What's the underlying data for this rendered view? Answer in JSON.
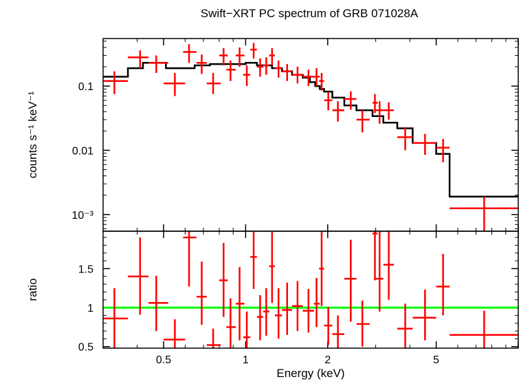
{
  "title": "Swift−XRT PC spectrum of GRB 071028A",
  "colors": {
    "data": "#ff0000",
    "model": "#000000",
    "unity": "#00ff00",
    "axes": "#000000"
  },
  "chart_data": [
    {
      "type": "scatter",
      "panel": "spectrum",
      "xscale": "log",
      "yscale": "log",
      "xlim": [
        0.3,
        10
      ],
      "ylim": [
        0.00055,
        0.55
      ],
      "xlabel": "Energy (keV)",
      "ylabel": "counts s⁻¹ keV⁻¹",
      "ytick_labels": [
        {
          "value": 0.1,
          "label": "0.1"
        },
        {
          "value": 0.01,
          "label": "0.01"
        },
        {
          "value": 0.001,
          "label": "10⁻³"
        }
      ],
      "series": [
        {
          "kind": "data",
          "points": [
            {
              "x": 0.33,
              "xlo": 0.3,
              "xhi": 0.37,
              "y": 0.12,
              "ylo": 0.075,
              "yhi": 0.17
            },
            {
              "x": 0.41,
              "xlo": 0.37,
              "xhi": 0.44,
              "y": 0.28,
              "ylo": 0.19,
              "yhi": 0.36
            },
            {
              "x": 0.47,
              "xlo": 0.44,
              "xhi": 0.52,
              "y": 0.23,
              "ylo": 0.16,
              "yhi": 0.3
            },
            {
              "x": 0.55,
              "xlo": 0.5,
              "xhi": 0.6,
              "y": 0.11,
              "ylo": 0.07,
              "yhi": 0.16
            },
            {
              "x": 0.62,
              "xlo": 0.59,
              "xhi": 0.66,
              "y": 0.34,
              "ylo": 0.23,
              "yhi": 0.45
            },
            {
              "x": 0.69,
              "xlo": 0.66,
              "xhi": 0.72,
              "y": 0.23,
              "ylo": 0.155,
              "yhi": 0.31
            },
            {
              "x": 0.76,
              "xlo": 0.72,
              "xhi": 0.81,
              "y": 0.11,
              "ylo": 0.075,
              "yhi": 0.16
            },
            {
              "x": 0.83,
              "xlo": 0.8,
              "xhi": 0.86,
              "y": 0.3,
              "ylo": 0.21,
              "yhi": 0.39
            },
            {
              "x": 0.88,
              "xlo": 0.85,
              "xhi": 0.92,
              "y": 0.18,
              "ylo": 0.12,
              "yhi": 0.25
            },
            {
              "x": 0.95,
              "xlo": 0.92,
              "xhi": 0.99,
              "y": 0.3,
              "ylo": 0.2,
              "yhi": 0.4
            },
            {
              "x": 1.01,
              "xlo": 0.98,
              "xhi": 1.04,
              "y": 0.15,
              "ylo": 0.1,
              "yhi": 0.21
            },
            {
              "x": 1.07,
              "xlo": 1.04,
              "xhi": 1.1,
              "y": 0.37,
              "ylo": 0.27,
              "yhi": 0.47
            },
            {
              "x": 1.13,
              "xlo": 1.1,
              "xhi": 1.16,
              "y": 0.2,
              "ylo": 0.14,
              "yhi": 0.27
            },
            {
              "x": 1.19,
              "xlo": 1.16,
              "xhi": 1.22,
              "y": 0.21,
              "ylo": 0.15,
              "yhi": 0.28
            },
            {
              "x": 1.25,
              "xlo": 1.22,
              "xhi": 1.28,
              "y": 0.3,
              "ylo": 0.21,
              "yhi": 0.39
            },
            {
              "x": 1.32,
              "xlo": 1.28,
              "xhi": 1.36,
              "y": 0.19,
              "ylo": 0.135,
              "yhi": 0.25
            },
            {
              "x": 1.42,
              "xlo": 1.36,
              "xhi": 1.48,
              "y": 0.17,
              "ylo": 0.12,
              "yhi": 0.22
            },
            {
              "x": 1.55,
              "xlo": 1.48,
              "xhi": 1.62,
              "y": 0.15,
              "ylo": 0.11,
              "yhi": 0.2
            },
            {
              "x": 1.7,
              "xlo": 1.62,
              "xhi": 1.78,
              "y": 0.14,
              "ylo": 0.1,
              "yhi": 0.18
            },
            {
              "x": 1.82,
              "xlo": 1.78,
              "xhi": 1.87,
              "y": 0.14,
              "ylo": 0.1,
              "yhi": 0.19
            },
            {
              "x": 1.9,
              "xlo": 1.86,
              "xhi": 1.94,
              "y": 0.12,
              "ylo": 0.085,
              "yhi": 0.16
            },
            {
              "x": 2.01,
              "xlo": 1.94,
              "xhi": 2.08,
              "y": 0.06,
              "ylo": 0.042,
              "yhi": 0.081
            },
            {
              "x": 2.18,
              "xlo": 2.08,
              "xhi": 2.3,
              "y": 0.042,
              "ylo": 0.028,
              "yhi": 0.058
            },
            {
              "x": 2.43,
              "xlo": 2.3,
              "xhi": 2.55,
              "y": 0.063,
              "ylo": 0.043,
              "yhi": 0.083
            },
            {
              "x": 2.68,
              "xlo": 2.55,
              "xhi": 2.85,
              "y": 0.03,
              "ylo": 0.019,
              "yhi": 0.042
            },
            {
              "x": 2.98,
              "xlo": 2.92,
              "xhi": 3.05,
              "y": 0.055,
              "ylo": 0.038,
              "yhi": 0.075
            },
            {
              "x": 3.1,
              "xlo": 3.0,
              "xhi": 3.2,
              "y": 0.042,
              "ylo": 0.026,
              "yhi": 0.058
            },
            {
              "x": 3.35,
              "xlo": 3.2,
              "xhi": 3.5,
              "y": 0.042,
              "ylo": 0.03,
              "yhi": 0.056
            },
            {
              "x": 3.85,
              "xlo": 3.6,
              "xhi": 4.1,
              "y": 0.016,
              "ylo": 0.01,
              "yhi": 0.023
            },
            {
              "x": 4.55,
              "xlo": 4.1,
              "xhi": 5.0,
              "y": 0.013,
              "ylo": 0.0085,
              "yhi": 0.018
            },
            {
              "x": 5.3,
              "xlo": 5.0,
              "xhi": 5.6,
              "y": 0.011,
              "ylo": 0.0065,
              "yhi": 0.015
            },
            {
              "x": 7.5,
              "xlo": 5.6,
              "xhi": 10.0,
              "y": 0.00125,
              "ylo": 0.00055,
              "yhi": 0.0019
            }
          ]
        },
        {
          "kind": "model-step",
          "steps": [
            {
              "x0": 0.3,
              "x1": 0.37,
              "y": 0.14
            },
            {
              "x0": 0.37,
              "x1": 0.42,
              "y": 0.19
            },
            {
              "x0": 0.42,
              "x1": 0.51,
              "y": 0.23
            },
            {
              "x0": 0.51,
              "x1": 0.65,
              "y": 0.19
            },
            {
              "x0": 0.65,
              "x1": 0.74,
              "y": 0.21
            },
            {
              "x0": 0.74,
              "x1": 1.0,
              "y": 0.22
            },
            {
              "x0": 1.0,
              "x1": 1.1,
              "y": 0.23
            },
            {
              "x0": 1.1,
              "x1": 1.25,
              "y": 0.21
            },
            {
              "x0": 1.25,
              "x1": 1.36,
              "y": 0.19
            },
            {
              "x0": 1.36,
              "x1": 1.48,
              "y": 0.17
            },
            {
              "x0": 1.48,
              "x1": 1.62,
              "y": 0.15
            },
            {
              "x0": 1.62,
              "x1": 1.72,
              "y": 0.135
            },
            {
              "x0": 1.72,
              "x1": 1.8,
              "y": 0.115
            },
            {
              "x0": 1.8,
              "x1": 1.87,
              "y": 0.1
            },
            {
              "x0": 1.87,
              "x1": 1.94,
              "y": 0.09
            },
            {
              "x0": 1.94,
              "x1": 2.08,
              "y": 0.082
            },
            {
              "x0": 2.08,
              "x1": 2.3,
              "y": 0.066
            },
            {
              "x0": 2.3,
              "x1": 2.55,
              "y": 0.05
            },
            {
              "x0": 2.55,
              "x1": 2.92,
              "y": 0.042
            },
            {
              "x0": 2.92,
              "x1": 3.2,
              "y": 0.034
            },
            {
              "x0": 3.2,
              "x1": 3.6,
              "y": 0.027
            },
            {
              "x0": 3.6,
              "x1": 4.1,
              "y": 0.022
            },
            {
              "x0": 4.1,
              "x1": 5.0,
              "y": 0.013
            },
            {
              "x0": 5.0,
              "x1": 5.6,
              "y": 0.0088
            },
            {
              "x0": 5.6,
              "x1": 10.0,
              "y": 0.0019
            }
          ]
        }
      ]
    },
    {
      "type": "scatter",
      "panel": "ratio",
      "xscale": "log",
      "yscale": "linear",
      "xlim": [
        0.3,
        10
      ],
      "ylim": [
        0.48,
        1.98
      ],
      "xlabel": "Energy (keV)",
      "ylabel": "ratio",
      "xtick_labels": [
        {
          "value": 0.5,
          "label": "0.5"
        },
        {
          "value": 1,
          "label": "1"
        },
        {
          "value": 2,
          "label": "2"
        },
        {
          "value": 5,
          "label": "5"
        }
      ],
      "ytick_labels": [
        {
          "value": 0.5,
          "label": "0.5"
        },
        {
          "value": 1,
          "label": "1"
        },
        {
          "value": 1.5,
          "label": "1.5"
        }
      ],
      "reference_line": 1,
      "series": [
        {
          "kind": "data",
          "points": [
            {
              "x": 0.33,
              "xlo": 0.3,
              "xhi": 0.37,
              "y": 0.86,
              "ylo": 0.48,
              "yhi": 1.25
            },
            {
              "x": 0.41,
              "xlo": 0.37,
              "xhi": 0.44,
              "y": 1.4,
              "ylo": 0.91,
              "yhi": 1.9
            },
            {
              "x": 0.47,
              "xlo": 0.44,
              "xhi": 0.52,
              "y": 1.06,
              "ylo": 0.7,
              "yhi": 1.41
            },
            {
              "x": 0.55,
              "xlo": 0.5,
              "xhi": 0.6,
              "y": 0.59,
              "ylo": 0.48,
              "yhi": 0.85
            },
            {
              "x": 0.62,
              "xlo": 0.59,
              "xhi": 0.66,
              "y": 1.9,
              "ylo": 1.27,
              "yhi": 1.98
            },
            {
              "x": 0.69,
              "xlo": 0.66,
              "xhi": 0.72,
              "y": 1.14,
              "ylo": 0.78,
              "yhi": 1.59
            },
            {
              "x": 0.76,
              "xlo": 0.72,
              "xhi": 0.81,
              "y": 0.52,
              "ylo": 0.48,
              "yhi": 0.73
            },
            {
              "x": 0.83,
              "xlo": 0.8,
              "xhi": 0.86,
              "y": 1.35,
              "ylo": 0.88,
              "yhi": 1.83
            },
            {
              "x": 0.88,
              "xlo": 0.85,
              "xhi": 0.92,
              "y": 0.75,
              "ylo": 0.48,
              "yhi": 1.12
            },
            {
              "x": 0.95,
              "xlo": 0.92,
              "xhi": 0.99,
              "y": 1.05,
              "ylo": 0.58,
              "yhi": 1.52
            },
            {
              "x": 1.01,
              "xlo": 0.98,
              "xhi": 1.04,
              "y": 0.62,
              "ylo": 0.48,
              "yhi": 0.95
            },
            {
              "x": 1.07,
              "xlo": 1.04,
              "xhi": 1.1,
              "y": 1.65,
              "ylo": 1.24,
              "yhi": 1.98
            },
            {
              "x": 1.13,
              "xlo": 1.1,
              "xhi": 1.16,
              "y": 0.88,
              "ylo": 0.58,
              "yhi": 1.16
            },
            {
              "x": 1.19,
              "xlo": 1.16,
              "xhi": 1.22,
              "y": 0.95,
              "ylo": 0.64,
              "yhi": 1.25
            },
            {
              "x": 1.25,
              "xlo": 1.22,
              "xhi": 1.28,
              "y": 1.53,
              "ylo": 1.06,
              "yhi": 1.98
            },
            {
              "x": 1.32,
              "xlo": 1.28,
              "xhi": 1.36,
              "y": 0.9,
              "ylo": 0.6,
              "yhi": 1.25
            },
            {
              "x": 1.42,
              "xlo": 1.36,
              "xhi": 1.48,
              "y": 0.97,
              "ylo": 0.65,
              "yhi": 1.32
            },
            {
              "x": 1.55,
              "xlo": 1.48,
              "xhi": 1.62,
              "y": 1.02,
              "ylo": 0.7,
              "yhi": 1.34
            },
            {
              "x": 1.7,
              "xlo": 1.62,
              "xhi": 1.78,
              "y": 0.96,
              "ylo": 0.68,
              "yhi": 1.24
            },
            {
              "x": 1.82,
              "xlo": 1.78,
              "xhi": 1.87,
              "y": 1.05,
              "ylo": 0.75,
              "yhi": 1.38
            },
            {
              "x": 1.9,
              "xlo": 1.86,
              "xhi": 1.94,
              "y": 1.5,
              "ylo": 1.02,
              "yhi": 1.98
            },
            {
              "x": 2.01,
              "xlo": 1.94,
              "xhi": 2.08,
              "y": 0.77,
              "ylo": 0.52,
              "yhi": 1.01
            },
            {
              "x": 2.18,
              "xlo": 2.08,
              "xhi": 2.3,
              "y": 0.66,
              "ylo": 0.48,
              "yhi": 0.9
            },
            {
              "x": 2.43,
              "xlo": 2.3,
              "xhi": 2.55,
              "y": 1.37,
              "ylo": 0.82,
              "yhi": 1.87
            },
            {
              "x": 2.68,
              "xlo": 2.55,
              "xhi": 2.85,
              "y": 0.79,
              "ylo": 0.5,
              "yhi": 1.09
            },
            {
              "x": 2.98,
              "xlo": 2.92,
              "xhi": 3.05,
              "y": 1.95,
              "ylo": 1.35,
              "yhi": 1.98
            },
            {
              "x": 3.1,
              "xlo": 3.0,
              "xhi": 3.2,
              "y": 1.37,
              "ylo": 0.95,
              "yhi": 1.98
            },
            {
              "x": 3.35,
              "xlo": 3.2,
              "xhi": 3.5,
              "y": 1.55,
              "ylo": 1.1,
              "yhi": 1.98
            },
            {
              "x": 3.85,
              "xlo": 3.6,
              "xhi": 4.1,
              "y": 0.73,
              "ylo": 0.48,
              "yhi": 1.05
            },
            {
              "x": 4.55,
              "xlo": 4.1,
              "xhi": 5.0,
              "y": 0.87,
              "ylo": 0.58,
              "yhi": 1.23
            },
            {
              "x": 5.3,
              "xlo": 5.0,
              "xhi": 5.6,
              "y": 1.27,
              "ylo": 0.9,
              "yhi": 1.69
            },
            {
              "x": 7.5,
              "xlo": 5.6,
              "xhi": 10.0,
              "y": 0.65,
              "ylo": 0.48,
              "yhi": 0.96
            }
          ]
        }
      ]
    }
  ]
}
